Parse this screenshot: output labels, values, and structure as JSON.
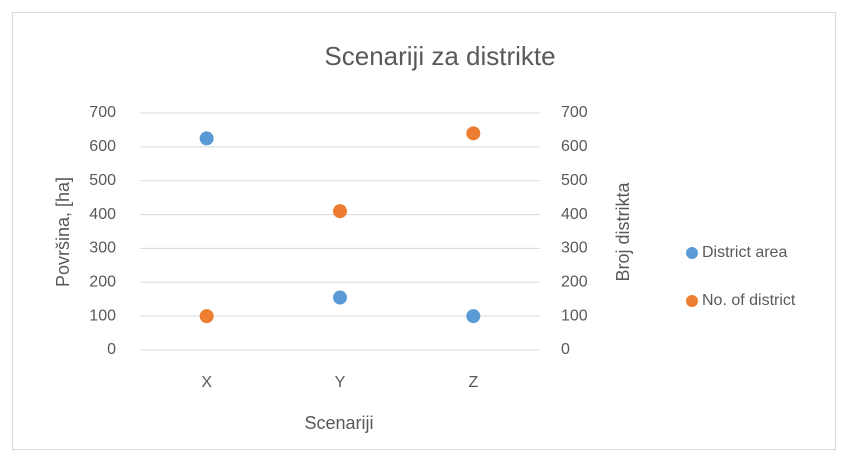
{
  "chart_data": {
    "type": "scatter",
    "title": "Scenariji za distrikte",
    "x_label": "Scenariji",
    "y_label": "Površina, [ha]",
    "y2_label": "Broj distrikta",
    "categories": [
      "X",
      "Y",
      "Z"
    ],
    "series": [
      {
        "name": "District area",
        "color": "#5b9bd5",
        "values": [
          625,
          155,
          100
        ]
      },
      {
        "name": "No. of district",
        "color": "#ed7d31",
        "values": [
          100,
          410,
          640
        ],
        "axis": "y2"
      }
    ],
    "ylim": [
      0,
      700
    ],
    "yticks": [
      0,
      100,
      200,
      300,
      400,
      500,
      600,
      700
    ],
    "y2lim": [
      0,
      700
    ],
    "y2ticks": [
      0,
      100,
      200,
      300,
      400,
      500,
      600,
      700
    ],
    "grid": true,
    "legend": "right"
  }
}
